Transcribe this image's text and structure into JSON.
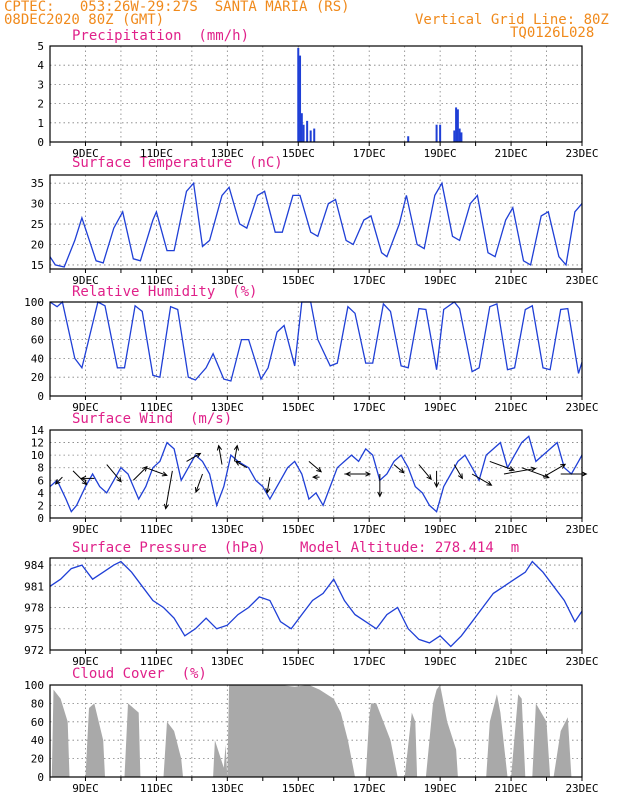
{
  "header": {
    "line1": "CPTEC:   053:26W-29:27S  SANTA MARIA (RS)",
    "line2": "08DEC2020 80Z (GMT)",
    "grid_note": "Vertical Grid Line: 80Z",
    "product_code": "TQ0126L028"
  },
  "colors": {
    "header": "#f08a1c",
    "title": "#e0218a",
    "line": "#1f3fd6",
    "bar": "#1f3fd6",
    "cloud": "#a9a9a9"
  },
  "x_ticks": [
    "9DEC",
    "11DEC",
    "13DEC",
    "15DEC",
    "17DEC",
    "19DEC",
    "21DEC",
    "23DEC"
  ],
  "chart_data": [
    {
      "type": "bar",
      "title": "Precipitation  (mm/h)",
      "ylim": [
        0,
        5
      ],
      "yticks": [
        "0",
        "1",
        "2",
        "3",
        "4",
        "5"
      ],
      "x": [
        15.0,
        15.05,
        15.1,
        15.15,
        15.25,
        15.35,
        15.45,
        18.1,
        18.9,
        19.0,
        19.4,
        19.45,
        19.5,
        19.55,
        19.6
      ],
      "values": [
        4.9,
        4.5,
        1.5,
        0.9,
        1.1,
        0.6,
        0.7,
        0.3,
        0.9,
        0.9,
        0.6,
        1.8,
        1.7,
        0.7,
        0.5
      ]
    },
    {
      "type": "line",
      "title": "Surface Temperature  (nC)",
      "ylim": [
        14,
        37
      ],
      "yticks": [
        "15",
        "20",
        "25",
        "30",
        "35"
      ],
      "x": [
        8.0,
        8.15,
        8.4,
        8.7,
        8.9,
        9.3,
        9.5,
        9.8,
        10.05,
        10.35,
        10.55,
        10.9,
        11.0,
        11.3,
        11.5,
        11.85,
        12.05,
        12.3,
        12.5,
        12.85,
        13.05,
        13.35,
        13.55,
        13.85,
        14.05,
        14.35,
        14.55,
        14.85,
        15.05,
        15.35,
        15.55,
        15.85,
        16.05,
        16.35,
        16.55,
        16.85,
        17.05,
        17.35,
        17.5,
        17.85,
        18.05,
        18.35,
        18.55,
        18.85,
        19.05,
        19.35,
        19.55,
        19.85,
        20.05,
        20.35,
        20.55,
        20.85,
        21.05,
        21.35,
        21.55,
        21.85,
        22.05,
        22.35,
        22.55,
        22.8,
        23.0
      ],
      "values": [
        17,
        15,
        14.5,
        21,
        26.5,
        16,
        15.5,
        24,
        28,
        16.5,
        16,
        26,
        28,
        18.5,
        18.5,
        33,
        35,
        19.5,
        21,
        32,
        34,
        25,
        24,
        32,
        33,
        23,
        23,
        32,
        32,
        23,
        22,
        30,
        31,
        21,
        20,
        26,
        27,
        18,
        17,
        25,
        32,
        20,
        19,
        32,
        35,
        22,
        21,
        30,
        32,
        18,
        17,
        26,
        29,
        16,
        15,
        27,
        28,
        17,
        15,
        28,
        30
      ]
    },
    {
      "type": "line",
      "title": "Relative Humidity  (%)",
      "ylim": [
        0,
        100
      ],
      "yticks": [
        "0",
        "20",
        "40",
        "60",
        "80",
        "100"
      ],
      "x": [
        8.0,
        8.2,
        8.35,
        8.7,
        8.9,
        9.35,
        9.55,
        9.9,
        10.1,
        10.4,
        10.6,
        10.9,
        11.1,
        11.4,
        11.6,
        11.9,
        12.1,
        12.4,
        12.6,
        12.9,
        13.1,
        13.4,
        13.6,
        13.95,
        14.15,
        14.4,
        14.6,
        14.9,
        15.1,
        15.35,
        15.55,
        15.9,
        16.1,
        16.4,
        16.6,
        16.9,
        17.1,
        17.4,
        17.6,
        17.9,
        18.1,
        18.4,
        18.6,
        18.9,
        19.1,
        19.4,
        19.55,
        19.9,
        20.1,
        20.4,
        20.6,
        20.9,
        21.1,
        21.4,
        21.6,
        21.9,
        22.1,
        22.4,
        22.6,
        22.9,
        23.0
      ],
      "values": [
        100,
        95,
        100,
        40,
        30,
        100,
        96,
        30,
        30,
        96,
        90,
        22,
        20,
        95,
        92,
        20,
        17,
        30,
        45,
        18,
        16,
        60,
        60,
        18,
        30,
        68,
        75,
        32,
        100,
        100,
        60,
        32,
        35,
        95,
        88,
        35,
        35,
        98,
        90,
        32,
        30,
        93,
        92,
        28,
        92,
        100,
        93,
        26,
        30,
        95,
        98,
        28,
        30,
        92,
        96,
        30,
        28,
        92,
        93,
        24,
        36
      ]
    },
    {
      "type": "line",
      "title": "Surface Wind  (m/s)",
      "ylim": [
        0,
        14
      ],
      "yticks": [
        "0",
        "2",
        "4",
        "6",
        "8",
        "10",
        "12",
        "14"
      ],
      "x": [
        8.0,
        8.2,
        8.45,
        8.6,
        8.75,
        9.0,
        9.2,
        9.4,
        9.6,
        9.8,
        10.0,
        10.2,
        10.5,
        10.7,
        10.9,
        11.1,
        11.3,
        11.5,
        11.7,
        11.9,
        12.1,
        12.3,
        12.5,
        12.7,
        12.9,
        13.1,
        13.3,
        13.6,
        13.8,
        14.0,
        14.2,
        14.5,
        14.7,
        14.9,
        15.1,
        15.3,
        15.5,
        15.7,
        15.9,
        16.1,
        16.3,
        16.5,
        16.7,
        16.9,
        17.1,
        17.3,
        17.5,
        17.7,
        17.9,
        18.1,
        18.3,
        18.5,
        18.7,
        18.9,
        19.1,
        19.3,
        19.5,
        19.7,
        19.9,
        20.1,
        20.3,
        20.5,
        20.7,
        20.9,
        21.1,
        21.3,
        21.5,
        21.7,
        21.9,
        22.1,
        22.3,
        22.5,
        22.7,
        22.9,
        23.0
      ],
      "values": [
        5,
        6,
        3,
        1,
        2,
        5,
        7,
        5,
        4,
        6,
        8,
        7,
        3,
        5,
        8,
        9,
        12,
        11,
        6,
        8,
        10,
        9,
        7,
        2,
        5,
        10,
        9,
        8,
        6,
        5,
        3,
        6,
        8,
        9,
        7,
        3,
        4,
        2,
        5,
        8,
        9,
        10,
        9,
        11,
        10,
        6,
        7,
        9,
        10,
        8,
        5,
        4,
        2,
        1,
        5,
        7,
        9,
        10,
        8,
        6,
        10,
        11,
        12,
        8,
        10,
        12,
        13,
        9,
        10,
        11,
        12,
        8,
        7,
        9,
        10
      ]
    },
    {
      "type": "line",
      "title": "Surface Pressure  (hPa)",
      "annotation": "Model Altitude: 278.414  m",
      "ylim": [
        972,
        985
      ],
      "yticks": [
        "972",
        "975",
        "978",
        "981",
        "984"
      ],
      "x": [
        8.0,
        8.3,
        8.6,
        8.9,
        9.2,
        9.5,
        9.8,
        10.0,
        10.3,
        10.6,
        10.9,
        11.2,
        11.5,
        11.8,
        12.1,
        12.4,
        12.7,
        13.0,
        13.3,
        13.6,
        13.9,
        14.2,
        14.5,
        14.8,
        15.1,
        15.4,
        15.7,
        16.0,
        16.3,
        16.6,
        16.9,
        17.2,
        17.5,
        17.8,
        18.1,
        18.4,
        18.7,
        19.0,
        19.3,
        19.6,
        19.9,
        20.2,
        20.5,
        20.8,
        21.1,
        21.4,
        21.6,
        21.9,
        22.2,
        22.5,
        22.8,
        23.0
      ],
      "values": [
        981,
        982,
        983.5,
        984,
        982,
        983,
        984,
        984.5,
        983,
        981,
        979,
        978,
        976.5,
        974,
        975,
        976.5,
        975,
        975.5,
        977,
        978,
        979.5,
        979,
        976,
        975,
        977,
        979,
        980,
        982,
        979,
        977,
        976,
        975,
        977,
        978,
        975,
        973.5,
        973,
        974,
        972.5,
        974,
        976,
        978,
        980,
        981,
        982,
        983,
        984.5,
        983,
        981,
        979,
        976,
        977.5
      ]
    },
    {
      "type": "area",
      "title": "Cloud Cover  (%)",
      "ylim": [
        0,
        100
      ],
      "yticks": [
        "0",
        "20",
        "40",
        "60",
        "80",
        "100"
      ],
      "x": [
        8.05,
        8.1,
        8.3,
        8.5,
        8.55,
        9.0,
        9.1,
        9.25,
        9.5,
        9.55,
        10.1,
        10.2,
        10.5,
        10.55,
        11.2,
        11.3,
        11.5,
        11.7,
        11.75,
        12.6,
        12.65,
        12.9,
        12.95,
        13.0,
        13.05,
        13.5,
        14.0,
        14.5,
        14.9,
        15.3,
        15.6,
        16.0,
        16.2,
        16.4,
        16.6,
        16.9,
        17.0,
        17.05,
        17.2,
        17.4,
        17.6,
        17.8,
        18.0,
        18.2,
        18.3,
        18.35,
        18.6,
        18.8,
        18.9,
        19.0,
        19.2,
        19.45,
        19.5,
        19.6,
        19.8,
        20.3,
        20.4,
        20.6,
        20.7,
        20.9,
        21.0,
        21.2,
        21.3,
        21.4,
        21.6,
        21.7,
        22.0,
        22.1,
        22.2,
        22.4,
        22.6,
        22.7
      ],
      "values": [
        0,
        95,
        85,
        60,
        0,
        0,
        75,
        80,
        40,
        0,
        0,
        80,
        70,
        0,
        0,
        60,
        50,
        20,
        0,
        0,
        40,
        10,
        35,
        0,
        100,
        100,
        100,
        100,
        98,
        100,
        95,
        85,
        70,
        40,
        0,
        0,
        65,
        80,
        80,
        60,
        40,
        0,
        0,
        70,
        60,
        0,
        0,
        80,
        95,
        100,
        60,
        30,
        0,
        0,
        0,
        0,
        60,
        90,
        70,
        0,
        0,
        90,
        85,
        0,
        0,
        80,
        60,
        0,
        0,
        50,
        65,
        0
      ]
    }
  ],
  "wind_arrows": [
    {
      "x": 8.35,
      "y": 6.5,
      "dir": 225,
      "speed": 3
    },
    {
      "x": 8.65,
      "y": 7.5,
      "dir": 135,
      "speed": 6
    },
    {
      "x": 9.25,
      "y": 6.3,
      "dir": 270,
      "speed": 4
    },
    {
      "x": 9.6,
      "y": 8.5,
      "dir": 140,
      "speed": 7
    },
    {
      "x": 10.35,
      "y": 6.0,
      "dir": 45,
      "speed": 6
    },
    {
      "x": 10.7,
      "y": 8.0,
      "dir": 110,
      "speed": 7
    },
    {
      "x": 11.45,
      "y": 7.5,
      "dir": 190,
      "speed": 12
    },
    {
      "x": 11.85,
      "y": 9.0,
      "dir": 60,
      "speed": 5
    },
    {
      "x": 12.3,
      "y": 7.0,
      "dir": 200,
      "speed": 6
    },
    {
      "x": 12.85,
      "y": 8.5,
      "dir": 350,
      "speed": 6
    },
    {
      "x": 13.2,
      "y": 9.0,
      "dir": 10,
      "speed": 5
    },
    {
      "x": 13.55,
      "y": 8.0,
      "dir": 300,
      "speed": 4
    },
    {
      "x": 14.2,
      "y": 6.5,
      "dir": 190,
      "speed": 5
    },
    {
      "x": 15.3,
      "y": 9.0,
      "dir": 130,
      "speed": 5
    },
    {
      "x": 15.6,
      "y": 6.5,
      "dir": 270,
      "speed": 2
    },
    {
      "x": 16.3,
      "y": 7.0,
      "dir": 90,
      "speed": 8
    },
    {
      "x": 16.8,
      "y": 7.0,
      "dir": 270,
      "speed": 5
    },
    {
      "x": 17.3,
      "y": 7.0,
      "dir": 180,
      "speed": 7
    },
    {
      "x": 17.7,
      "y": 8.5,
      "dir": 130,
      "speed": 4
    },
    {
      "x": 18.4,
      "y": 8.5,
      "dir": 140,
      "speed": 6
    },
    {
      "x": 18.9,
      "y": 7.5,
      "dir": 180,
      "speed": 5
    },
    {
      "x": 19.4,
      "y": 8.5,
      "dir": 150,
      "speed": 5
    },
    {
      "x": 19.9,
      "y": 7.0,
      "dir": 120,
      "speed": 7
    },
    {
      "x": 20.4,
      "y": 9.0,
      "dir": 110,
      "speed": 8
    },
    {
      "x": 20.8,
      "y": 7.0,
      "dir": 80,
      "speed": 10
    },
    {
      "x": 21.3,
      "y": 8.0,
      "dir": 110,
      "speed": 9
    },
    {
      "x": 21.9,
      "y": 6.5,
      "dir": 60,
      "speed": 8
    },
    {
      "x": 22.4,
      "y": 7.0,
      "dir": 90,
      "speed": 8
    }
  ]
}
